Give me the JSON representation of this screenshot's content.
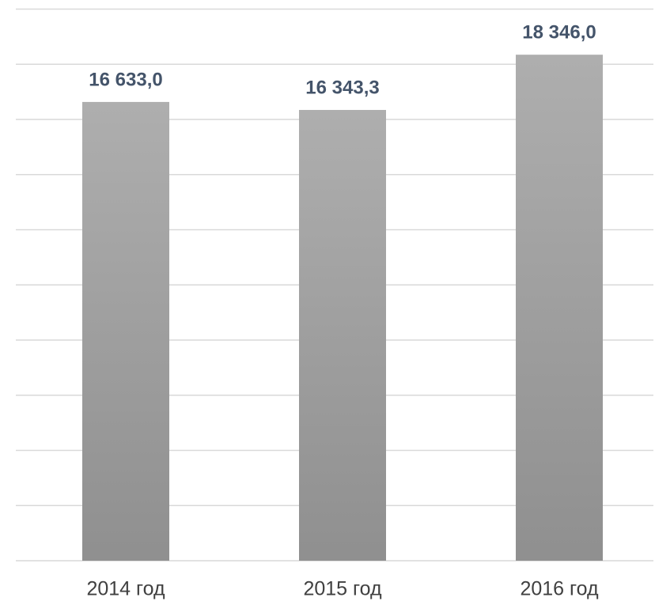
{
  "chart_data": {
    "type": "bar",
    "categories": [
      "2014 год",
      "2015 год",
      "2016 год"
    ],
    "values": [
      16633.0,
      16343.3,
      18346.0
    ],
    "value_labels": [
      "16 633,0",
      "16 343,3",
      "18 346,0"
    ],
    "color": "#a3a3a3",
    "ylim": [
      0,
      20000
    ],
    "yticks": [
      0,
      2000,
      4000,
      6000,
      8000,
      10000,
      12000,
      14000,
      16000,
      18000,
      20000
    ],
    "grid": true
  }
}
